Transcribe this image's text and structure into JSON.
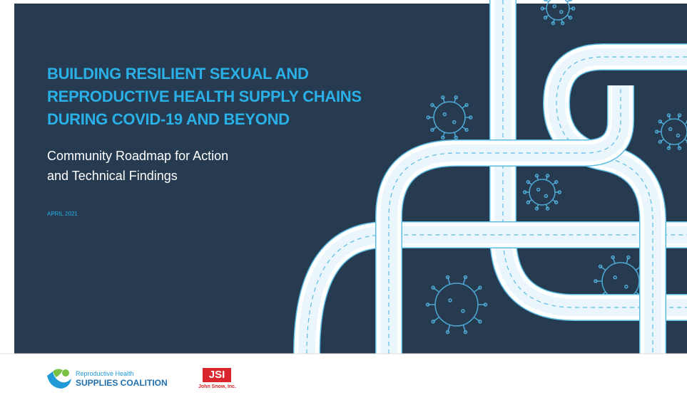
{
  "header": {
    "title_lines": [
      "BUILDING RESILIENT SEXUAL AND",
      "REPRODUCTIVE HEALTH SUPPLY CHAINS",
      "DURING COVID-19 AND BEYOND"
    ],
    "subtitle_lines": [
      "Community Roadmap for Action",
      "and Technical Findings"
    ],
    "date": "APRIL 2021"
  },
  "footer": {
    "logos": [
      {
        "line1": "Reproductive Health",
        "line2": "SUPPLIES COALITION"
      },
      {
        "line1": "JSI",
        "line2": "John Snow, Inc."
      }
    ]
  }
}
